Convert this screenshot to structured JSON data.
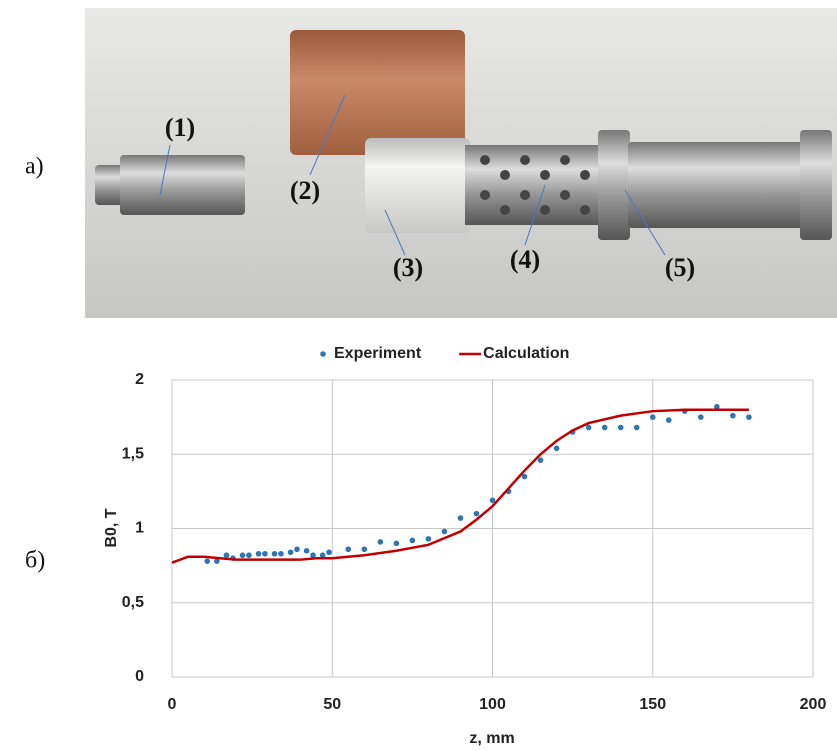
{
  "panel_labels": [
    "а)",
    "б)"
  ],
  "photo_labels": [
    "(1)",
    "(2)",
    "(3)",
    "(4)",
    "(5)"
  ],
  "chart_data": {
    "type": "line",
    "xlabel": "z, mm",
    "ylabel": "B0, T",
    "xlim": [
      0,
      200
    ],
    "xticks": [
      0,
      50,
      100,
      150,
      200
    ],
    "ylim": [
      0,
      2
    ],
    "yticks": [
      0,
      {
        "value": 0.5,
        "label": "0,5"
      },
      1,
      {
        "value": 1.5,
        "label": "1,5"
      },
      2
    ],
    "grid": true,
    "legend": "top",
    "series": [
      {
        "name": "Experiment",
        "color": "#2e75b6",
        "style": "points",
        "x": [
          11,
          14,
          17,
          19,
          22,
          24,
          27,
          29,
          32,
          34,
          37,
          39,
          42,
          44,
          47,
          49,
          55,
          60,
          65,
          70,
          75,
          80,
          85,
          90,
          95,
          100,
          105,
          110,
          115,
          120,
          125,
          130,
          135,
          140,
          145,
          150,
          155,
          160,
          165,
          170,
          175,
          180
        ],
        "values": [
          0.78,
          0.78,
          0.82,
          0.8,
          0.82,
          0.82,
          0.83,
          0.83,
          0.83,
          0.83,
          0.84,
          0.86,
          0.85,
          0.82,
          0.82,
          0.84,
          0.86,
          0.86,
          0.91,
          0.9,
          0.92,
          0.93,
          0.98,
          1.07,
          1.1,
          1.19,
          1.25,
          1.35,
          1.46,
          1.54,
          1.65,
          1.68,
          1.68,
          1.68,
          1.68,
          1.75,
          1.73,
          1.79,
          1.75,
          1.82,
          1.76,
          1.75
        ]
      },
      {
        "name": "Calculation",
        "color": "#c00000",
        "style": "line",
        "x": [
          0,
          5,
          10,
          15,
          20,
          25,
          30,
          35,
          40,
          45,
          50,
          60,
          70,
          80,
          90,
          95,
          100,
          105,
          110,
          115,
          120,
          125,
          130,
          140,
          150,
          160,
          170,
          180
        ],
        "values": [
          0.77,
          0.81,
          0.81,
          0.8,
          0.79,
          0.79,
          0.79,
          0.79,
          0.79,
          0.8,
          0.8,
          0.82,
          0.85,
          0.89,
          0.98,
          1.06,
          1.15,
          1.27,
          1.39,
          1.5,
          1.59,
          1.66,
          1.71,
          1.76,
          1.79,
          1.8,
          1.8,
          1.8
        ]
      }
    ]
  }
}
